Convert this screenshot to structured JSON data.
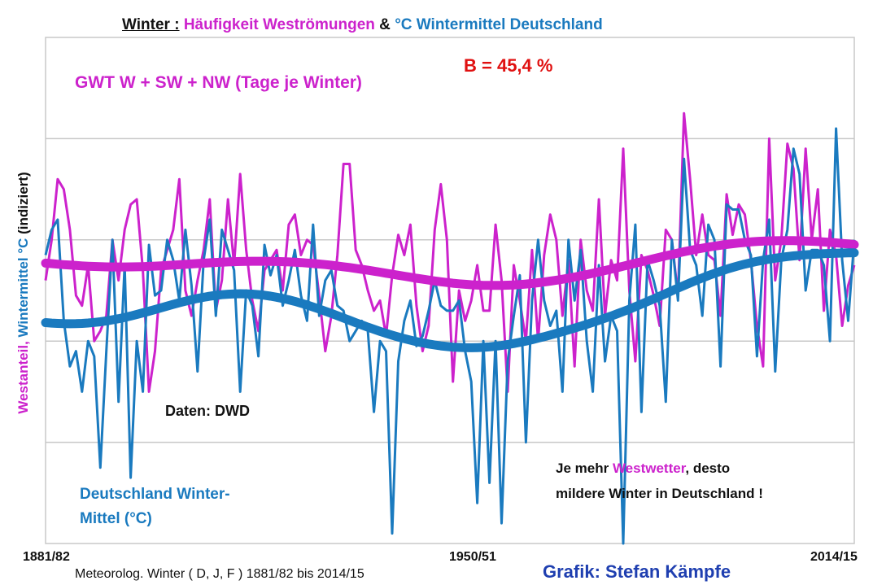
{
  "title": {
    "winter": "Winter :",
    "part_magenta": "Häufigkeit  Weströmungen",
    "amp": "&",
    "part_blue": "°C  Wintermittel  Deutschland"
  },
  "labels": {
    "gwt": "GWT W + SW + NW (Tage je Winter)",
    "b_value": "B = 45,4 %",
    "daten": "Daten: DWD",
    "de_line1": "Deutschland Winter-",
    "de_line2": "Mittel (°C)",
    "je_a": "Je mehr ",
    "je_b": "Westwetter",
    "je_c": ", desto",
    "je_line2": "mildere Winter in Deutschland !",
    "grafik": "Grafik: Stefan Kämpfe"
  },
  "axis": {
    "ylabel_magenta": "Westanteil,",
    "ylabel_blue": "Wintermittel °C",
    "ylabel_black": "(indiziert)",
    "xlabel": "Meteorolog.  Winter ( D, J, F ) 1881/82 bis 2014/15",
    "ticks": [
      "1881/82",
      "1950/51",
      "2014/15"
    ]
  },
  "colors": {
    "magenta": "#cc22cc",
    "blue": "#1a7abf",
    "red": "#e01010",
    "grid": "#c8c8c8"
  },
  "chart_data": {
    "type": "line",
    "x_start": 1882,
    "x_end": 2015,
    "x_tick_labels": [
      "1881/82",
      "1950/51",
      "2014/15"
    ],
    "ylim": [
      0,
      100
    ],
    "y_axis_numbers_shown": false,
    "grid": "horizontal",
    "series": [
      {
        "name": "GWT W + SW + NW (Tage je Winter)",
        "values": [
          52,
          60,
          72,
          70,
          62,
          49,
          47,
          55,
          40,
          42,
          45,
          60,
          52,
          62,
          67,
          68,
          54,
          30,
          38,
          54,
          58,
          62,
          72,
          50,
          45,
          52,
          58,
          68,
          46,
          52,
          68,
          55,
          73,
          58,
          48,
          42,
          54,
          56,
          58,
          50,
          63,
          65,
          57,
          60,
          59,
          49,
          38,
          45,
          57,
          75,
          75,
          58,
          55,
          50,
          46,
          48,
          41,
          53,
          61,
          57,
          63,
          47,
          38,
          43,
          62,
          71,
          60,
          32,
          50,
          44,
          48,
          55,
          46,
          46,
          63,
          52,
          30,
          55,
          48,
          40,
          58,
          40,
          57,
          65,
          60,
          45,
          56,
          35,
          60,
          50,
          46,
          68,
          45,
          56,
          52,
          78,
          50,
          36,
          57,
          54,
          49,
          43,
          62,
          60,
          49,
          85,
          72,
          57,
          65,
          57,
          56,
          45,
          69,
          61,
          67,
          65,
          56,
          43,
          35,
          80,
          52,
          60,
          79,
          74,
          56,
          78,
          60,
          70,
          46,
          62,
          57,
          43,
          51,
          55
        ],
        "trend_start": 64,
        "trend_end": 72
      },
      {
        "name": "Deutschland Winter-Mittel (°C)",
        "values": [
          57,
          62,
          64,
          44,
          35,
          38,
          30,
          40,
          37,
          15,
          38,
          60,
          28,
          55,
          13,
          40,
          30,
          59,
          49,
          50,
          60,
          56,
          48,
          62,
          51,
          34,
          56,
          64,
          45,
          62,
          58,
          54,
          30,
          50,
          47,
          37,
          59,
          53,
          57,
          47,
          52,
          58,
          49,
          44,
          63,
          45,
          52,
          54,
          47,
          46,
          40,
          42,
          44,
          42,
          26,
          40,
          38,
          2,
          36,
          44,
          48,
          39,
          41,
          46,
          52,
          47,
          46,
          46,
          48,
          38,
          32,
          8,
          40,
          12,
          40,
          4,
          36,
          45,
          53,
          20,
          48,
          60,
          48,
          43,
          46,
          30,
          60,
          48,
          58,
          40,
          30,
          55,
          36,
          45,
          42,
          0,
          48,
          63,
          26,
          56,
          52,
          47,
          28,
          60,
          48,
          76,
          58,
          55,
          45,
          63,
          60,
          35,
          67,
          66,
          66,
          60,
          57,
          37,
          56,
          64,
          34,
          56,
          62,
          78,
          73,
          50,
          58,
          58,
          55,
          40,
          82,
          56,
          44,
          60
        ],
        "trend_start": 50,
        "trend_end": 58
      }
    ]
  }
}
